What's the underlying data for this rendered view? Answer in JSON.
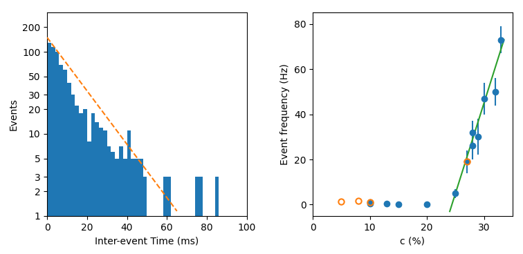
{
  "chart_data": [
    {
      "type": "histogram",
      "xlabel": "Inter-event Time (ms)",
      "ylabel": "Events",
      "bins": [
        0,
        2,
        4,
        6,
        8,
        10,
        12,
        14,
        16,
        18,
        20,
        22,
        24,
        26,
        28,
        30,
        32,
        34,
        36,
        38,
        40,
        42,
        44,
        46,
        48,
        50,
        52,
        54,
        56,
        58,
        60,
        62,
        64,
        66,
        68,
        70,
        72,
        74,
        76,
        78,
        80,
        82,
        84,
        86,
        88,
        90
      ],
      "series": [
        {
          "type": "bar",
          "values": [
            130,
            115,
            100,
            70,
            60,
            42,
            30,
            22,
            18,
            20,
            8,
            18,
            14,
            12,
            11,
            7,
            6,
            5,
            7,
            5,
            11,
            5,
            5,
            5,
            3,
            1,
            1,
            1,
            1,
            3,
            3,
            1,
            1,
            1,
            1,
            1,
            1,
            3,
            3,
            1,
            1,
            1,
            3,
            1,
            1
          ]
        },
        {
          "type": "line",
          "line_style": "dashed",
          "x": [
            0,
            65
          ],
          "values": [
            150,
            1.14526
          ]
        }
      ],
      "log": "y",
      "xlim": [
        0,
        100
      ],
      "ylim": [
        1,
        300
      ],
      "xticks": [
        0,
        20,
        40,
        60,
        80,
        100
      ],
      "yticks": [
        1,
        2,
        3,
        5,
        10,
        20,
        30,
        50,
        100,
        200
      ]
    },
    {
      "type": "scatter",
      "xlabel": "c (%)",
      "ylabel": "Event frequency (Hz)",
      "series": [
        {
          "type": "scatter",
          "marker": "filled circle",
          "x": [
            10,
            10,
            13,
            15,
            20,
            25,
            27,
            28,
            28,
            29,
            30,
            32,
            33
          ],
          "values": [
            0.5,
            1.0,
            0.3,
            0.2,
            0.2,
            5.0,
            19.0,
            26.0,
            32.0,
            30.0,
            47.0,
            50.0,
            73.0
          ],
          "yerr": [
            0.5,
            0.5,
            0.3,
            0.3,
            0.3,
            2.0,
            5.0,
            6.0,
            5.0,
            8.0,
            7.0,
            6.0,
            6.0
          ]
        },
        {
          "type": "scatter",
          "marker": "open circle",
          "x": [
            5,
            8,
            10,
            27
          ],
          "values": [
            1.5,
            1.8,
            1.0,
            19.0
          ]
        },
        {
          "type": "line",
          "line_style": "solid",
          "x": [
            24.0,
            33.5
          ],
          "values": [
            -3.0,
            73.0
          ]
        }
      ],
      "xlim": [
        0,
        35
      ],
      "ylim": [
        -5,
        85
      ],
      "xticks": [
        0,
        10,
        20,
        30
      ],
      "yticks": [
        0,
        20,
        40,
        60,
        80
      ]
    }
  ]
}
